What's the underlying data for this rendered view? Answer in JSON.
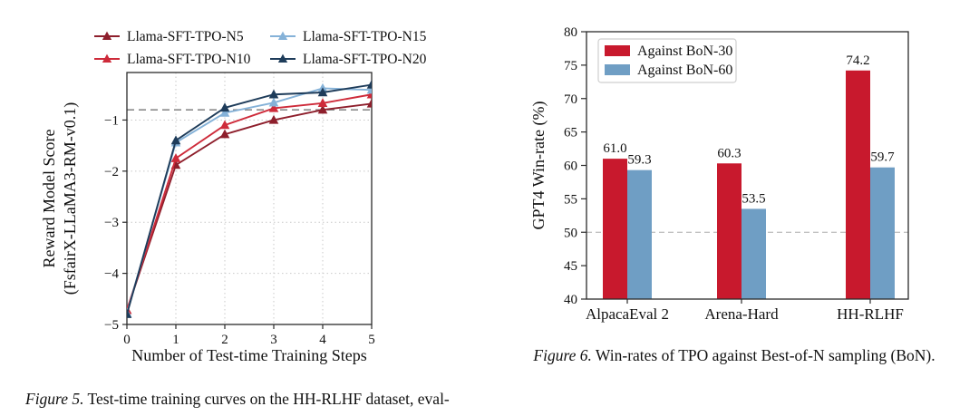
{
  "figure5": {
    "caption_label": "Figure 5.",
    "caption_text": " Test-time training curves on the HH-RLHF dataset, eval-"
  },
  "figure6": {
    "caption_label": "Figure 6.",
    "caption_text": " Win-rates of TPO against Best-of-N sampling (BoN)."
  },
  "chart_data": [
    {
      "id": "fig5",
      "type": "line",
      "title": "",
      "xlabel": "Number of Test-time Training Steps",
      "ylabel_lines": [
        "Reward Model Score",
        "(FsfairX-LLaMA3-RM-v0.1)"
      ],
      "x": [
        0,
        1,
        2,
        3,
        4,
        5
      ],
      "xticks": [
        0,
        1,
        2,
        3,
        4,
        5
      ],
      "yticks": [
        -5,
        -4,
        -3,
        -2,
        -1
      ],
      "xlim": [
        0,
        5
      ],
      "ylim": [
        -5.0,
        -0.07
      ],
      "grid": "dotted",
      "grid_color": "#c9c9c9",
      "reference_line": {
        "y": -0.8,
        "style": "dashed",
        "color": "#8a8a8a"
      },
      "legend_position": "above-two-column",
      "series": [
        {
          "name": "Llama-SFT-TPO-N5",
          "color": "#8E1F2C",
          "marker": "triangle-up",
          "values": [
            -4.72,
            -1.88,
            -1.28,
            -1.0,
            -0.8,
            -0.68
          ]
        },
        {
          "name": "Llama-SFT-TPO-N10",
          "color": "#CE2B3A",
          "marker": "triangle-up",
          "values": [
            -4.72,
            -1.75,
            -1.1,
            -0.77,
            -0.67,
            -0.5
          ]
        },
        {
          "name": "Llama-SFT-TPO-N15",
          "color": "#85B2D8",
          "marker": "triangle-up",
          "values": [
            -4.78,
            -1.44,
            -0.86,
            -0.66,
            -0.38,
            -0.41
          ]
        },
        {
          "name": "Llama-SFT-TPO-N20",
          "color": "#1E3C5A",
          "marker": "triangle-up",
          "values": [
            -4.8,
            -1.4,
            -0.76,
            -0.5,
            -0.46,
            -0.31
          ]
        }
      ]
    },
    {
      "id": "fig6",
      "type": "bar",
      "title": "",
      "xlabel": "",
      "ylabel": "GPT4 Win-rate (%)",
      "categories": [
        "AlpacaEval 2",
        "Arena-Hard",
        "HH-RLHF"
      ],
      "ylim": [
        40,
        80
      ],
      "yticks": [
        40,
        45,
        50,
        55,
        60,
        65,
        70,
        75,
        80
      ],
      "grid": "off",
      "reference_line": {
        "y": 50,
        "style": "dashed",
        "color": "#ababab"
      },
      "legend_position": "upper-left",
      "show_bar_labels": true,
      "series": [
        {
          "name": "Against BoN-30",
          "color": "#C8192D",
          "values": [
            61.0,
            60.3,
            74.2
          ]
        },
        {
          "name": "Against BoN-60",
          "color": "#6F9EC4",
          "values": [
            59.3,
            53.5,
            59.7
          ]
        }
      ]
    }
  ]
}
